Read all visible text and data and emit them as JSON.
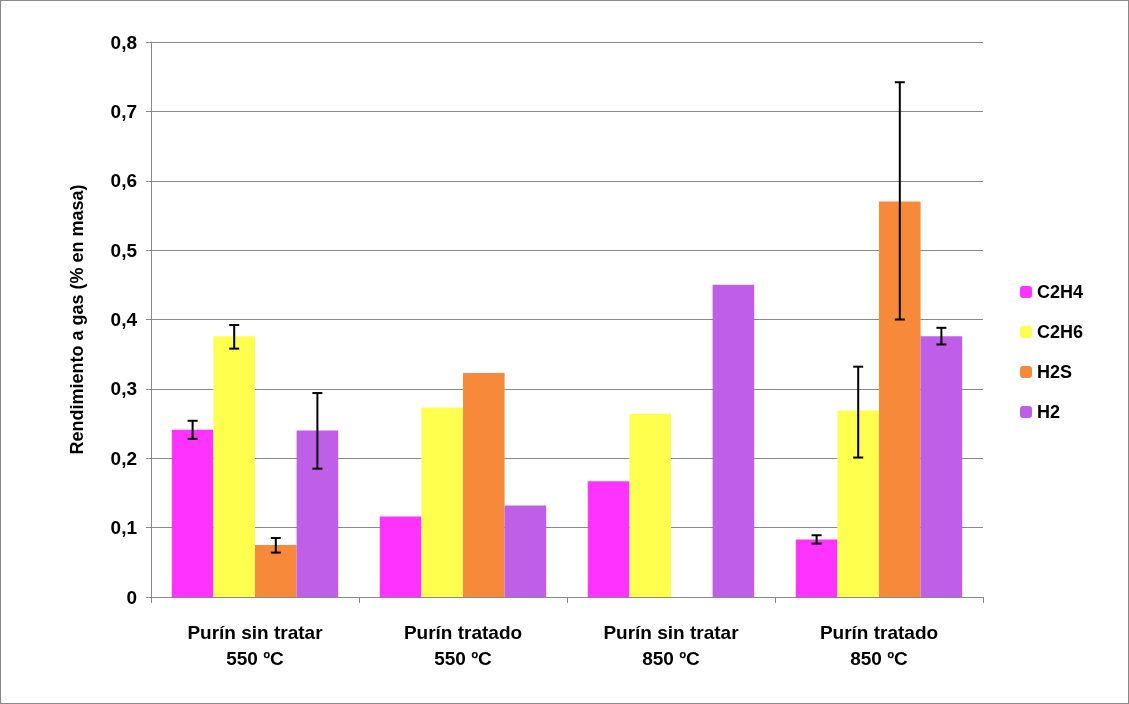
{
  "chart_data": {
    "type": "bar",
    "ylabel": "Rendimiento a gas (% en masa)",
    "categories": [
      "Purín sin tratar\n550 ºC",
      "Purín tratado\n550 ºC",
      "Purín sin tratar\n850 ºC",
      "Purín tratado\n850 ºC"
    ],
    "series": [
      {
        "name": "C2H4",
        "color": "#ff33ff",
        "values": [
          0.241,
          0.116,
          0.167,
          0.083
        ],
        "errors": [
          [
            0.228,
            0.254
          ],
          null,
          null,
          [
            0.077,
            0.089
          ]
        ]
      },
      {
        "name": "C2H6",
        "color": "#ffff4d",
        "values": [
          0.376,
          0.273,
          0.264,
          0.269
        ],
        "errors": [
          [
            0.358,
            0.392
          ],
          null,
          null,
          [
            0.201,
            0.332
          ]
        ]
      },
      {
        "name": "H2S",
        "color": "#f7893a",
        "values": [
          0.075,
          0.323,
          null,
          0.57
        ],
        "errors": [
          [
            0.064,
            0.085
          ],
          null,
          null,
          [
            0.4,
            0.742
          ]
        ]
      },
      {
        "name": "H2",
        "color": "#bf5fe8",
        "values": [
          0.24,
          0.132,
          0.45,
          0.376
        ],
        "errors": [
          [
            0.185,
            0.294
          ],
          null,
          null,
          [
            0.364,
            0.388
          ]
        ]
      }
    ],
    "ylim": [
      0,
      0.8
    ],
    "yticks": [
      0,
      {
        "value": 0.1,
        "label": "0,1"
      },
      {
        "value": 0.2,
        "label": "0,2"
      },
      {
        "value": 0.3,
        "label": "0,3"
      },
      {
        "value": 0.4,
        "label": "0,4"
      },
      {
        "value": 0.5,
        "label": "0,5"
      },
      {
        "value": 0.6,
        "label": "0,6"
      },
      {
        "value": 0.7,
        "label": "0,7"
      },
      {
        "value": 0.8,
        "label": "0,8"
      }
    ],
    "grid": "y",
    "legend": "right"
  }
}
